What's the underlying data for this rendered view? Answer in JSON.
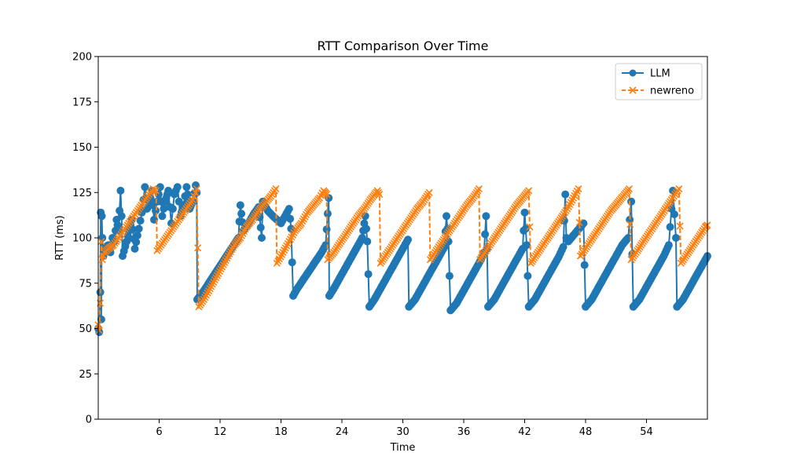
{
  "chart_data": {
    "type": "line",
    "title": "RTT Comparison Over Time",
    "xlabel": "Time",
    "ylabel": "RTT (ms)",
    "xlim": [
      0,
      60
    ],
    "ylim": [
      0,
      200
    ],
    "xticks": [
      6,
      12,
      18,
      24,
      30,
      36,
      42,
      48,
      54
    ],
    "yticks": [
      0,
      25,
      50,
      75,
      100,
      125,
      150,
      175,
      200
    ],
    "grid": false,
    "legend": "top-right",
    "series": [
      {
        "name": "LLM",
        "color": "#1f77b4",
        "marker": "circle",
        "linestyle": "solid",
        "points": [
          [
            0.0,
            50
          ],
          [
            0.1,
            48
          ],
          [
            0.2,
            70
          ],
          [
            0.25,
            114
          ],
          [
            0.3,
            55
          ],
          [
            0.35,
            112
          ],
          [
            0.4,
            100
          ],
          [
            0.5,
            90
          ],
          [
            0.7,
            95
          ],
          [
            1.0,
            96
          ],
          [
            1.2,
            92
          ],
          [
            1.4,
            100
          ],
          [
            1.6,
            98
          ],
          [
            1.8,
            110
          ],
          [
            2.0,
            104
          ],
          [
            2.2,
            126
          ],
          [
            2.3,
            112
          ],
          [
            2.4,
            90
          ],
          [
            2.8,
            98
          ],
          [
            3.3,
            110
          ],
          [
            3.6,
            94
          ],
          [
            4.0,
            105
          ],
          [
            4.3,
            114
          ],
          [
            4.6,
            128
          ],
          [
            4.8,
            116
          ],
          [
            5.0,
            118
          ],
          [
            5.3,
            126
          ],
          [
            5.5,
            110
          ],
          [
            5.8,
            120
          ],
          [
            6.1,
            128
          ],
          [
            6.3,
            112
          ],
          [
            6.6,
            120
          ],
          [
            6.9,
            126
          ],
          [
            7.2,
            108
          ],
          [
            7.5,
            124
          ],
          [
            7.8,
            128
          ],
          [
            8.1,
            112
          ],
          [
            8.4,
            118
          ],
          [
            8.7,
            128
          ],
          [
            9.0,
            116
          ],
          [
            9.3,
            120
          ],
          [
            9.6,
            129
          ],
          [
            9.7,
            125
          ],
          [
            9.75,
            66
          ],
          [
            10.3,
            70
          ],
          [
            11.0,
            76
          ],
          [
            11.7,
            82
          ],
          [
            12.4,
            88
          ],
          [
            13.1,
            94
          ],
          [
            13.8,
            100
          ],
          [
            14.0,
            118
          ],
          [
            14.3,
            104
          ],
          [
            14.8,
            108
          ],
          [
            15.3,
            113
          ],
          [
            15.8,
            117
          ],
          [
            16.1,
            100
          ],
          [
            16.2,
            120
          ],
          [
            16.7,
            115
          ],
          [
            17.2,
            112
          ],
          [
            17.6,
            110
          ],
          [
            18.0,
            108
          ],
          [
            18.4,
            112
          ],
          [
            18.8,
            116
          ],
          [
            19.0,
            105
          ],
          [
            19.2,
            68
          ],
          [
            19.6,
            72
          ],
          [
            20.2,
            77
          ],
          [
            20.8,
            82
          ],
          [
            21.4,
            87
          ],
          [
            22.0,
            92
          ],
          [
            22.4,
            96
          ],
          [
            22.7,
            122
          ],
          [
            22.75,
            68
          ],
          [
            23.2,
            72
          ],
          [
            23.8,
            78
          ],
          [
            24.4,
            84
          ],
          [
            25.0,
            90
          ],
          [
            25.6,
            96
          ],
          [
            26.0,
            100
          ],
          [
            26.3,
            112
          ],
          [
            26.5,
            98
          ],
          [
            26.7,
            62
          ],
          [
            27.2,
            66
          ],
          [
            27.8,
            72
          ],
          [
            28.4,
            78
          ],
          [
            29.0,
            84
          ],
          [
            29.6,
            90
          ],
          [
            30.2,
            96
          ],
          [
            30.5,
            99
          ],
          [
            30.6,
            62
          ],
          [
            31.2,
            66
          ],
          [
            31.8,
            72
          ],
          [
            32.4,
            78
          ],
          [
            33.0,
            84
          ],
          [
            33.6,
            90
          ],
          [
            34.1,
            95
          ],
          [
            34.3,
            112
          ],
          [
            34.5,
            98
          ],
          [
            34.7,
            60
          ],
          [
            35.3,
            64
          ],
          [
            35.9,
            70
          ],
          [
            36.5,
            76
          ],
          [
            37.1,
            82
          ],
          [
            37.7,
            88
          ],
          [
            38.0,
            92
          ],
          [
            38.2,
            112
          ],
          [
            38.3,
            94
          ],
          [
            38.4,
            62
          ],
          [
            39.0,
            66
          ],
          [
            39.6,
            72
          ],
          [
            40.2,
            78
          ],
          [
            40.8,
            84
          ],
          [
            41.4,
            90
          ],
          [
            41.8,
            94
          ],
          [
            42.0,
            114
          ],
          [
            42.2,
            96
          ],
          [
            42.4,
            62
          ],
          [
            43.0,
            66
          ],
          [
            43.6,
            72
          ],
          [
            44.2,
            78
          ],
          [
            44.8,
            84
          ],
          [
            45.4,
            90
          ],
          [
            45.8,
            95
          ],
          [
            46.0,
            124
          ],
          [
            46.1,
            100
          ],
          [
            46.3,
            98
          ],
          [
            46.9,
            102
          ],
          [
            47.5,
            106
          ],
          [
            47.8,
            108
          ],
          [
            48.0,
            62
          ],
          [
            48.6,
            66
          ],
          [
            49.2,
            72
          ],
          [
            49.8,
            78
          ],
          [
            50.4,
            84
          ],
          [
            51.0,
            90
          ],
          [
            51.6,
            96
          ],
          [
            52.2,
            100
          ],
          [
            52.5,
            120
          ],
          [
            52.7,
            62
          ],
          [
            53.3,
            66
          ],
          [
            53.9,
            72
          ],
          [
            54.5,
            78
          ],
          [
            55.1,
            84
          ],
          [
            55.7,
            90
          ],
          [
            56.2,
            96
          ],
          [
            56.6,
            126
          ],
          [
            56.9,
            100
          ],
          [
            57.0,
            62
          ],
          [
            57.6,
            66
          ],
          [
            58.2,
            72
          ],
          [
            58.8,
            78
          ],
          [
            59.4,
            84
          ],
          [
            60.0,
            90
          ]
        ]
      },
      {
        "name": "newreno",
        "color": "#ff7f0e",
        "marker": "x",
        "linestyle": "dashed",
        "points": [
          [
            0.0,
            52
          ],
          [
            0.1,
            49
          ],
          [
            0.2,
            64
          ],
          [
            0.3,
            98
          ],
          [
            0.4,
            88
          ],
          [
            0.6,
            92
          ],
          [
            1.0,
            94
          ],
          [
            1.5,
            96
          ],
          [
            2.0,
            100
          ],
          [
            2.5,
            104
          ],
          [
            3.0,
            108
          ],
          [
            3.5,
            112
          ],
          [
            4.0,
            116
          ],
          [
            4.5,
            120
          ],
          [
            5.0,
            124
          ],
          [
            5.4,
            127
          ],
          [
            5.7,
            126
          ],
          [
            5.8,
            93
          ],
          [
            6.3,
            97
          ],
          [
            6.8,
            101
          ],
          [
            7.3,
            105
          ],
          [
            7.8,
            109
          ],
          [
            8.3,
            113
          ],
          [
            8.8,
            117
          ],
          [
            9.3,
            121
          ],
          [
            9.7,
            127
          ],
          [
            9.9,
            62
          ],
          [
            10.4,
            66
          ],
          [
            11.0,
            72
          ],
          [
            11.6,
            78
          ],
          [
            12.2,
            84
          ],
          [
            12.8,
            90
          ],
          [
            13.4,
            96
          ],
          [
            14.0,
            100
          ],
          [
            14.6,
            106
          ],
          [
            15.2,
            110
          ],
          [
            15.8,
            115
          ],
          [
            16.4,
            119
          ],
          [
            17.0,
            123
          ],
          [
            17.5,
            127
          ],
          [
            17.6,
            86
          ],
          [
            18.2,
            92
          ],
          [
            18.8,
            98
          ],
          [
            19.4,
            104
          ],
          [
            20.0,
            108
          ],
          [
            20.6,
            114
          ],
          [
            21.2,
            118
          ],
          [
            21.8,
            122
          ],
          [
            22.2,
            126
          ],
          [
            22.5,
            124
          ],
          [
            22.6,
            88
          ],
          [
            23.2,
            92
          ],
          [
            23.8,
            97
          ],
          [
            24.4,
            102
          ],
          [
            25.0,
            107
          ],
          [
            25.6,
            112
          ],
          [
            26.2,
            116
          ],
          [
            26.8,
            121
          ],
          [
            27.5,
            126
          ],
          [
            27.7,
            124
          ],
          [
            27.8,
            86
          ],
          [
            28.4,
            91
          ],
          [
            29.0,
            96
          ],
          [
            29.6,
            101
          ],
          [
            30.2,
            106
          ],
          [
            30.8,
            111
          ],
          [
            31.4,
            116
          ],
          [
            32.0,
            120
          ],
          [
            32.6,
            125
          ],
          [
            32.7,
            88
          ],
          [
            33.3,
            93
          ],
          [
            33.9,
            98
          ],
          [
            34.5,
            103
          ],
          [
            35.1,
            108
          ],
          [
            35.7,
            113
          ],
          [
            36.3,
            118
          ],
          [
            36.9,
            122
          ],
          [
            37.5,
            127
          ],
          [
            37.6,
            88
          ],
          [
            38.2,
            93
          ],
          [
            38.8,
            98
          ],
          [
            39.4,
            103
          ],
          [
            40.0,
            108
          ],
          [
            40.6,
            113
          ],
          [
            41.2,
            118
          ],
          [
            41.8,
            122
          ],
          [
            42.4,
            126
          ],
          [
            42.6,
            86
          ],
          [
            43.2,
            91
          ],
          [
            43.8,
            96
          ],
          [
            44.4,
            101
          ],
          [
            45.0,
            106
          ],
          [
            45.6,
            111
          ],
          [
            46.2,
            116
          ],
          [
            46.8,
            122
          ],
          [
            47.3,
            127
          ],
          [
            47.5,
            90
          ],
          [
            48.1,
            95
          ],
          [
            48.7,
            100
          ],
          [
            49.3,
            105
          ],
          [
            49.9,
            110
          ],
          [
            50.5,
            115
          ],
          [
            51.1,
            119
          ],
          [
            51.7,
            123
          ],
          [
            52.3,
            127
          ],
          [
            52.5,
            88
          ],
          [
            53.1,
            93
          ],
          [
            53.7,
            98
          ],
          [
            54.3,
            103
          ],
          [
            54.9,
            108
          ],
          [
            55.5,
            113
          ],
          [
            56.1,
            118
          ],
          [
            56.7,
            123
          ],
          [
            57.2,
            127
          ],
          [
            57.4,
            86
          ],
          [
            58.0,
            91
          ],
          [
            58.6,
            96
          ],
          [
            59.2,
            101
          ],
          [
            59.8,
            106
          ],
          [
            60.0,
            107
          ]
        ]
      }
    ]
  }
}
